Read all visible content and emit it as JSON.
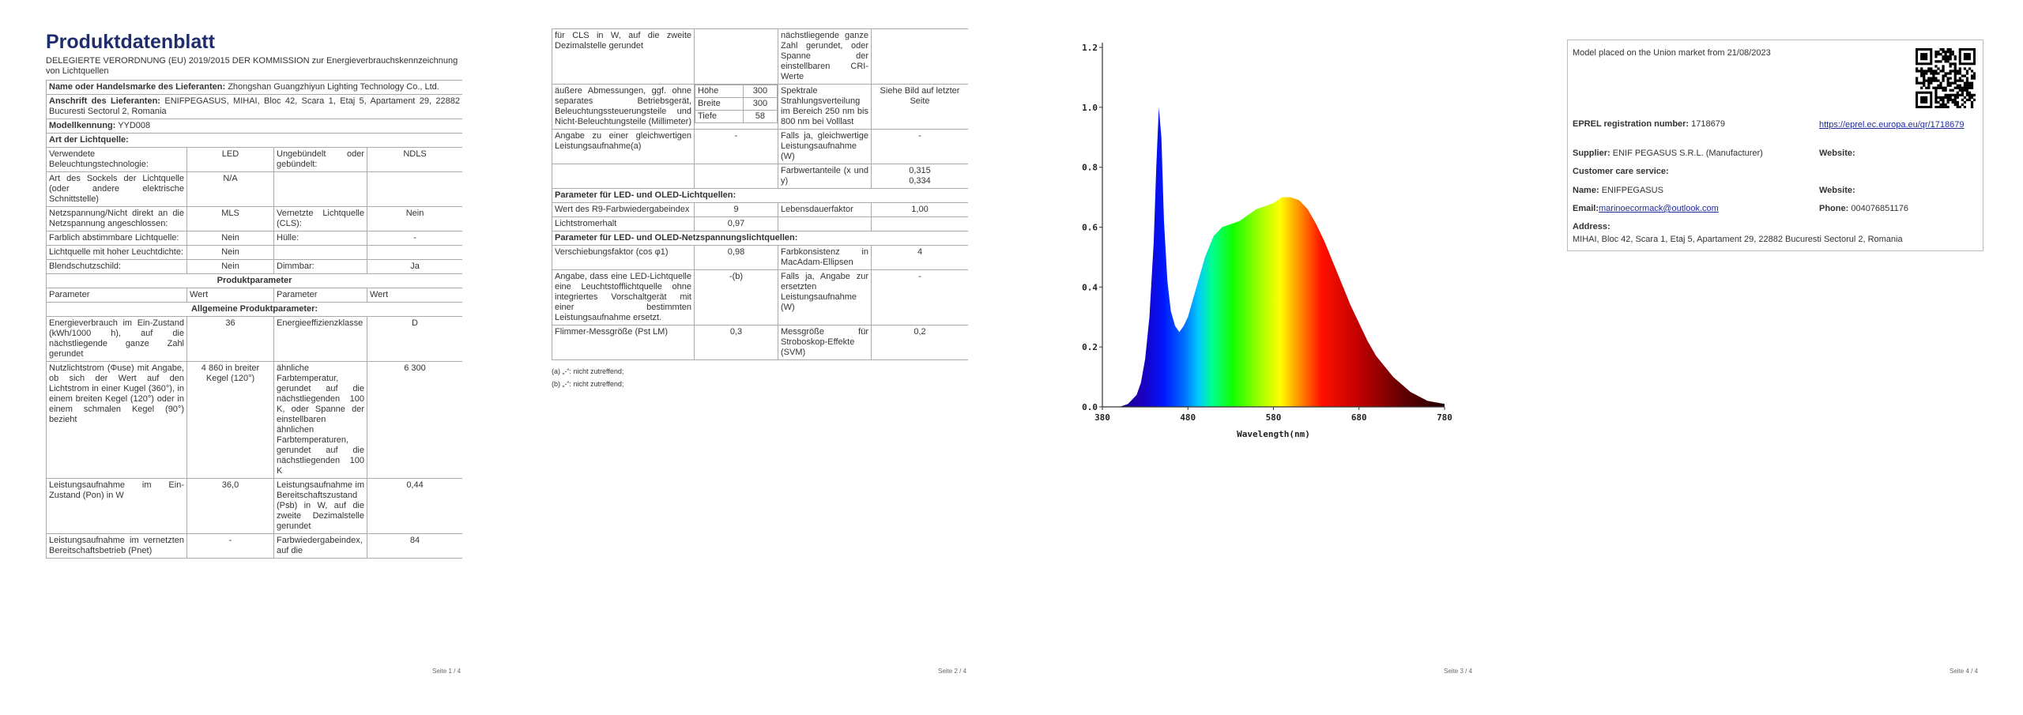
{
  "page1": {
    "title": "Produktdatenblatt",
    "regulation": "DELEGIERTE VERORDNUNG (EU) 2019/2015 DER KOMMISSION zur Energieverbrauchskennzeichnung von Lichtquellen",
    "supplier_name": {
      "label": "Name oder Handelsmarke des Lieferanten:",
      "value": "Zhongshan Guangzhiyun Lighting Technology Co., Ltd."
    },
    "supplier_address": {
      "label": "Anschrift des Lieferanten:",
      "value": "ENIFPEGASUS, MIHAI, Bloc 42, Scara 1, Etaj 5, Apartament 29, 22882 Bucuresti Sectorul 2, Romania"
    },
    "model": {
      "label": "Modellkennung:",
      "value": "YYD008"
    },
    "light_source_type": "Art der Lichtquelle:",
    "type_rows": [
      {
        "param1": "Verwendete Beleuchtungstechnologie:",
        "value1": "LED",
        "param2": "Ungebündelt oder gebündelt:",
        "value2": "NDLS"
      },
      {
        "param1": "Art des Sockels der Lichtquelle (oder andere elektrische Schnittstelle)",
        "value1": "N/A"
      },
      {
        "param1": "Netzspannung/Nicht direkt an die Netzspannung angeschlossen:",
        "value1": "MLS",
        "param2": "Vernetzte Lichtquelle (CLS):",
        "value2": "Nein"
      },
      {
        "param1": "Farblich abstimmbare Lichtquelle:",
        "value1": "Nein",
        "param2": "Hülle:",
        "value2": "-"
      },
      {
        "param1": "Lichtquelle mit hoher Leuchtdichte:",
        "value1": "Nein"
      },
      {
        "param1": "Blendschutzschild:",
        "value1": "Nein",
        "param2": "Dimmbar:",
        "value2": "Ja"
      }
    ],
    "product_parameters": "Produktparameter",
    "param_header": [
      "Parameter",
      "Wert",
      "Parameter",
      "Wert"
    ],
    "general": "Allgemeine Produktparameter:",
    "param_rows": [
      {
        "param1": "Energieverbrauch im Ein-Zustand (kWh/1000 h), auf die nächstliegende ganze Zahl gerundet",
        "value1": "36",
        "param2": "Energieeffizienzklasse",
        "value2": "D"
      },
      {
        "param1": "Nutzlichtstrom (Φuse) mit Angabe, ob sich der Wert auf den Lichtstrom in einer Kugel (360°), in einem breiten Kegel (120°) oder in einem schmalen Kegel (90°) bezieht",
        "value1": "4 860 in breiter Kegel (120°)",
        "param2": "ähnliche Farbtemperatur, gerundet auf die nächstliegenden 100 K, oder Spanne der einstellbaren ähnlichen Farbtemperaturen, gerundet auf die nächstliegenden 100 K",
        "value2": "6 300"
      },
      {
        "param1": "Leistungsaufnahme im Ein-Zustand (Pon) in W",
        "value1": "36,0",
        "param2": "Leistungsaufnahme im Bereitschaftszustand (Psb) in W, auf die zweite Dezimalstelle gerundet",
        "value2": "0,44"
      },
      {
        "param1": "Leistungsaufnahme im vernetzten Bereitschaftsbetrieb (Pnet)",
        "value1": "-",
        "param2": "Farbwiedergabeindex, auf die",
        "value2": "84"
      }
    ],
    "footer": "Seite 1 / 4"
  },
  "page2": {
    "top_row": {
      "param1": "für CLS in W, auf die zweite Dezimalstelle gerundet",
      "param2": "nächstliegende ganze Zahl gerundet, oder Spanne der einstellbaren CRI-Werte"
    },
    "dimensions": {
      "param1": "äußere Abmessungen, ggf. ohne separates Betriebsgerät, Beleuchtungssteuerungsteile und Nicht-Beleuchtungsteile (Millimeter)",
      "dims": [
        {
          "label": "Höhe",
          "value": "300"
        },
        {
          "label": "Breite",
          "value": "300"
        },
        {
          "label": "Tiefe",
          "value": "58"
        }
      ],
      "param2": "Spektrale Strahlungsverteilung im Bereich 250 nm bis 800 nm bei Volllast",
      "value2": "Siehe Bild auf letzter Seite"
    },
    "equivalent": {
      "param1": "Angabe zu einer gleichwertigen Leistungsaufnahme(a)",
      "value1": "-",
      "param2": "Falls ja, gleichwertige Leistungsaufnahme (W)",
      "value2": "-"
    },
    "chromaticity": {
      "param2": "Farbwertanteile (x und y)",
      "value2": [
        "0,315",
        "0,334"
      ]
    },
    "led_section": "Parameter für LED- und OLED-Lichtquellen:",
    "led_rows": [
      {
        "param1": "Wert des R9-Farbwiedergabeindex",
        "value1": "9",
        "param2": "Lebensdauerfaktor",
        "value2": "1,00"
      },
      {
        "param1": "Lichtstromerhalt",
        "value1": "0,97"
      }
    ],
    "mains_section": "Parameter für LED- und OLED-Netzspannungslichtquellen:",
    "mains_rows": [
      {
        "param1": "Verschiebungsfaktor (cos φ1)",
        "value1": "0,98",
        "param2": "Farbkonsistenz in MacAdam-Ellipsen",
        "value2": "4"
      },
      {
        "param1": "Angabe, dass eine LED-Lichtquelle eine Leuchtstofflichtquelle ohne integriertes Vorschaltgerät mit einer bestimmten Leistungsaufnahme ersetzt.",
        "value1": "-(b)",
        "param2": "Falls ja, Angabe zur ersetzten Leistungsaufnahme (W)",
        "value2": "-"
      },
      {
        "param1": "Flimmer-Messgröße (Pst LM)",
        "value1": "0,3",
        "param2": "Messgröße für Stroboskop-Effekte (SVM)",
        "value2": "0,2"
      }
    ],
    "footnotes": [
      "(a) „-“: nicht zutreffend;",
      "(b) „-“: nicht zutreffend;"
    ],
    "footer": "Seite 2 / 4"
  },
  "page3": {
    "spectrum": {
      "x_label": "Wavelength(nm)",
      "xlim": [
        380,
        780
      ],
      "ylim": [
        0,
        1.2
      ],
      "xticks": [
        380,
        480,
        580,
        680,
        780
      ],
      "yticks": [
        {
          "value": 0,
          "label": "0.0"
        },
        0.2,
        0.4,
        0.6,
        0.8,
        {
          "value": 1,
          "label": "1.0"
        },
        1.2
      ],
      "x": [
        400,
        410,
        420,
        425,
        430,
        435,
        440,
        443,
        446,
        449,
        452,
        456,
        460,
        465,
        470,
        475,
        480,
        490,
        500,
        510,
        520,
        530,
        540,
        550,
        560,
        570,
        580,
        590,
        600,
        610,
        620,
        630,
        640,
        650,
        660,
        670,
        680,
        690,
        700,
        720,
        740,
        760,
        780
      ],
      "values": [
        0,
        0.01,
        0.04,
        0.08,
        0.16,
        0.3,
        0.55,
        0.8,
        1.0,
        0.9,
        0.62,
        0.42,
        0.32,
        0.27,
        0.25,
        0.27,
        0.3,
        0.4,
        0.5,
        0.57,
        0.6,
        0.61,
        0.62,
        0.64,
        0.66,
        0.67,
        0.68,
        0.7,
        0.7,
        0.69,
        0.66,
        0.61,
        0.55,
        0.48,
        0.41,
        0.34,
        0.28,
        0.22,
        0.17,
        0.1,
        0.05,
        0.02,
        0.01
      ]
    },
    "footer": "Seite 3 / 4"
  },
  "page4": {
    "market_date": "Model placed on the Union market from 21/08/2023",
    "eprel": {
      "label": "EPREL registration number:",
      "value": "1718679",
      "link": "https://eprel.ec.europa.eu/qr/1718679"
    },
    "supplier": {
      "label": "Supplier:",
      "value": "ENIF PEGASUS S.R.L. (Manufacturer)",
      "website_label": "Website:"
    },
    "customer_care": "Customer care service:",
    "name": {
      "label": "Name:",
      "value": "ENIFPEGASUS",
      "website_label": "Website:"
    },
    "email": {
      "label": "Email:",
      "value": "marinoecormack@outlook.com"
    },
    "phone": {
      "label": "Phone:",
      "value": "004076851176"
    },
    "address": {
      "label": "Address:",
      "value": "MIHAI, Bloc 42, Scara 1, Etaj 5, Apartament 29, 22882 Bucuresti Sectorul 2, Romania"
    },
    "footer": "Seite 4 / 4"
  }
}
